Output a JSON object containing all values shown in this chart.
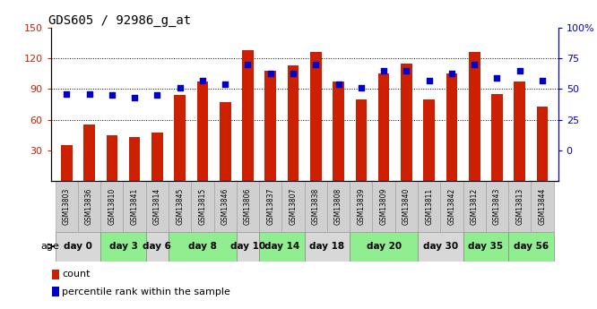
{
  "title": "GDS605 / 92986_g_at",
  "samples": [
    "GSM13803",
    "GSM13836",
    "GSM13810",
    "GSM13841",
    "GSM13814",
    "GSM13845",
    "GSM13815",
    "GSM13846",
    "GSM13806",
    "GSM13837",
    "GSM13807",
    "GSM13838",
    "GSM13808",
    "GSM13839",
    "GSM13809",
    "GSM13840",
    "GSM13811",
    "GSM13842",
    "GSM13812",
    "GSM13843",
    "GSM13813",
    "GSM13844"
  ],
  "counts": [
    35,
    55,
    45,
    43,
    47,
    84,
    97,
    77,
    128,
    108,
    113,
    126,
    97,
    80,
    105,
    115,
    80,
    105,
    126,
    85,
    97,
    73
  ],
  "percentiles": [
    46,
    46,
    45,
    43,
    45,
    51,
    57,
    54,
    70,
    63,
    63,
    70,
    54,
    51,
    65,
    65,
    57,
    63,
    70,
    59,
    65,
    57
  ],
  "age_groups": [
    {
      "label": "day 0",
      "start": 0,
      "end": 2,
      "color": "#d8d8d8"
    },
    {
      "label": "day 3",
      "start": 2,
      "end": 4,
      "color": "#90ee90"
    },
    {
      "label": "day 6",
      "start": 4,
      "end": 5,
      "color": "#d8d8d8"
    },
    {
      "label": "day 8",
      "start": 5,
      "end": 8,
      "color": "#90ee90"
    },
    {
      "label": "day 10",
      "start": 8,
      "end": 9,
      "color": "#d8d8d8"
    },
    {
      "label": "day 14",
      "start": 9,
      "end": 11,
      "color": "#90ee90"
    },
    {
      "label": "day 18",
      "start": 11,
      "end": 13,
      "color": "#d8d8d8"
    },
    {
      "label": "day 20",
      "start": 13,
      "end": 16,
      "color": "#90ee90"
    },
    {
      "label": "day 30",
      "start": 16,
      "end": 18,
      "color": "#d8d8d8"
    },
    {
      "label": "day 35",
      "start": 18,
      "end": 20,
      "color": "#90ee90"
    },
    {
      "label": "day 56",
      "start": 20,
      "end": 22,
      "color": "#90ee90"
    }
  ],
  "bar_color": "#cc2000",
  "dot_color": "#0000cc",
  "ylim_left": [
    0,
    150
  ],
  "ylim_right": [
    0,
    100
  ],
  "yticks_left": [
    30,
    60,
    90,
    120,
    150
  ],
  "yticks_right": [
    0,
    25,
    50,
    75,
    100
  ],
  "grid_vals": [
    60,
    90,
    120
  ],
  "legend_count": "count",
  "legend_pct": "percentile rank within the sample",
  "bar_width": 0.5,
  "sample_box_color": "#d0d0d0",
  "tick_fontsize": 8,
  "sample_fontsize": 5.5,
  "age_fontsize": 7.5,
  "legend_fontsize": 8
}
